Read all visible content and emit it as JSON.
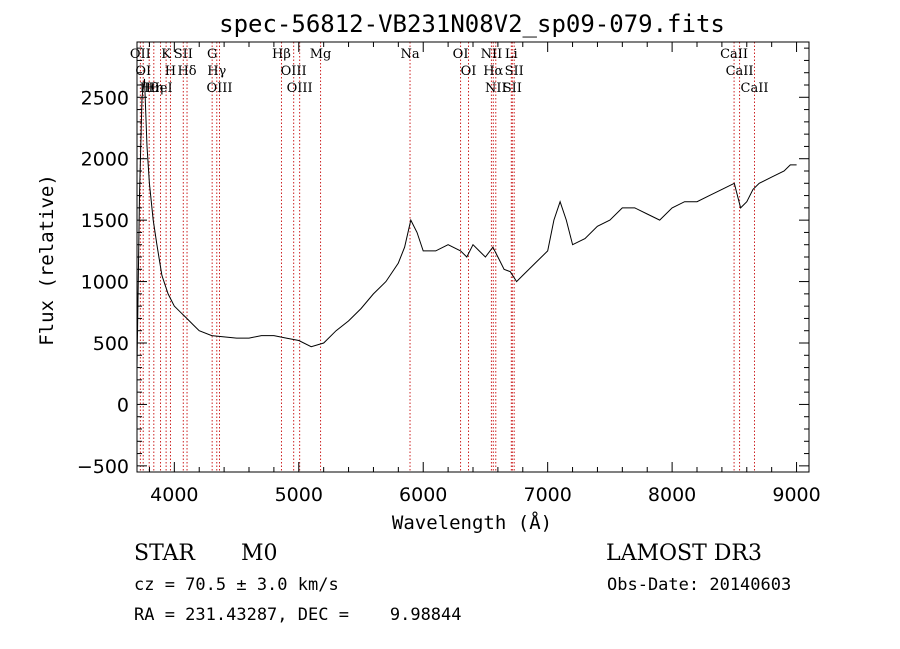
{
  "chart_data": {
    "type": "line",
    "title": "spec-56812-VB231N08V2_sp09-079.fits",
    "xlabel": "Wavelength (Å)",
    "ylabel": "Flux (relative)",
    "xlim": [
      3700,
      9100
    ],
    "ylim": [
      -550,
      2950
    ],
    "x_ticks": [
      4000,
      5000,
      6000,
      7000,
      8000,
      9000
    ],
    "y_ticks": [
      -500,
      0,
      500,
      1000,
      1500,
      2000,
      2500
    ],
    "series": [
      {
        "wavelength": [
          3700,
          3720,
          3740,
          3760,
          3780,
          3800,
          3830,
          3860,
          3900,
          3950,
          4000,
          4050,
          4100,
          4150,
          4200,
          4300,
          4400,
          4500,
          4600,
          4700,
          4800,
          4900,
          5000,
          5100,
          5200,
          5300,
          5400,
          5500,
          5600,
          5700,
          5800,
          5850,
          5900,
          5950,
          6000,
          6100,
          6200,
          6300,
          6350,
          6400,
          6450,
          6500,
          6560,
          6600,
          6650,
          6700,
          6750,
          6800,
          6900,
          7000,
          7050,
          7100,
          7150,
          7200,
          7300,
          7400,
          7500,
          7600,
          7700,
          7800,
          7900,
          8000,
          8100,
          8200,
          8300,
          8400,
          8500,
          8550,
          8600,
          8650,
          8700,
          8800,
          8900,
          8950,
          9000
        ],
        "flux": [
          300,
          1700,
          2500,
          2650,
          2100,
          1800,
          1500,
          1300,
          1050,
          900,
          800,
          750,
          700,
          650,
          600,
          560,
          550,
          540,
          540,
          560,
          560,
          540,
          520,
          470,
          500,
          600,
          680,
          780,
          900,
          1000,
          1150,
          1280,
          1500,
          1400,
          1250,
          1250,
          1300,
          1250,
          1200,
          1300,
          1250,
          1200,
          1280,
          1200,
          1100,
          1080,
          1000,
          1050,
          1150,
          1250,
          1500,
          1650,
          1500,
          1300,
          1350,
          1450,
          1500,
          1600,
          1600,
          1550,
          1500,
          1600,
          1650,
          1650,
          1700,
          1750,
          1800,
          1600,
          1650,
          1750,
          1800,
          1850,
          1900,
          1950,
          1950
        ]
      }
    ],
    "line_markers": [
      {
        "wave": 3727,
        "label": "OII"
      },
      {
        "wave": 3750,
        "label": "OI"
      },
      {
        "wave": 3798,
        "label": "Hθ"
      },
      {
        "wave": 3835,
        "label": "Hη"
      },
      {
        "wave": 3889,
        "label": "HeI"
      },
      {
        "wave": 3934,
        "label": "K"
      },
      {
        "wave": 3969,
        "label": "H"
      },
      {
        "wave": 4072,
        "label": "SII"
      },
      {
        "wave": 4102,
        "label": "Hδ"
      },
      {
        "wave": 4304,
        "label": "G"
      },
      {
        "wave": 4341,
        "label": "Hγ"
      },
      {
        "wave": 4363,
        "label": "OIII"
      },
      {
        "wave": 4861,
        "label": "Hβ"
      },
      {
        "wave": 4959,
        "label": "OIII"
      },
      {
        "wave": 5007,
        "label": "OIII"
      },
      {
        "wave": 5175,
        "label": "Mg"
      },
      {
        "wave": 5894,
        "label": "Na"
      },
      {
        "wave": 6300,
        "label": "OI"
      },
      {
        "wave": 6364,
        "label": "OI"
      },
      {
        "wave": 6548,
        "label": "NII"
      },
      {
        "wave": 6563,
        "label": "Hα"
      },
      {
        "wave": 6583,
        "label": "NII"
      },
      {
        "wave": 6708,
        "label": "Li"
      },
      {
        "wave": 6716,
        "label": "SII"
      },
      {
        "wave": 6731,
        "label": "SII"
      },
      {
        "wave": 8498,
        "label": "CaII"
      },
      {
        "wave": 8542,
        "label": "CaII"
      },
      {
        "wave": 8662,
        "label": "CaII"
      }
    ],
    "marker_color": "#cc2222"
  },
  "info": {
    "class_label": "STAR",
    "subclass": "M0",
    "survey": "LAMOST DR3",
    "cz": "cz = 70.5 ± 3.0 km/s",
    "obs_date": "Obs-Date: 20140603",
    "radec": "RA = 231.43287, DEC =    9.98844"
  }
}
